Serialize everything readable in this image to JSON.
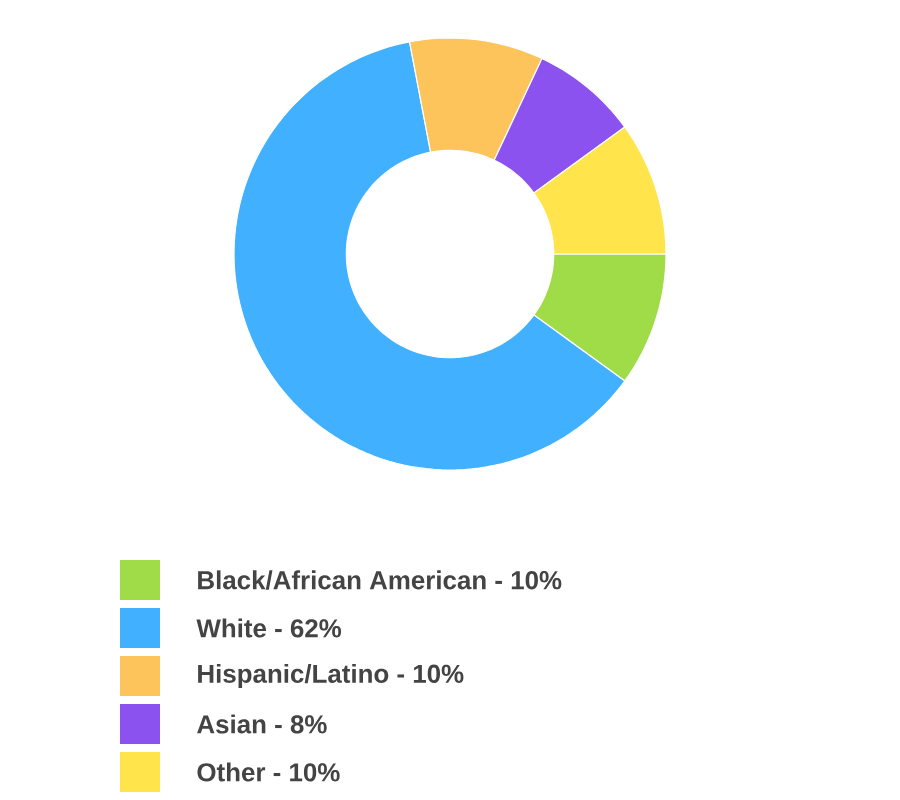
{
  "chart_data": {
    "type": "donut",
    "categories": [
      "Black/African American - 10%",
      "White - 62%",
      "Hispanic/Latino - 10%",
      "Asian - 8%",
      "Other - 10%"
    ],
    "values": [
      10,
      62,
      10,
      8,
      10
    ],
    "colors": [
      "#a0dc48",
      "#40b0ff",
      "#fcc45a",
      "#8c52f0",
      "#ffe44c"
    ],
    "legend": "bottom"
  }
}
